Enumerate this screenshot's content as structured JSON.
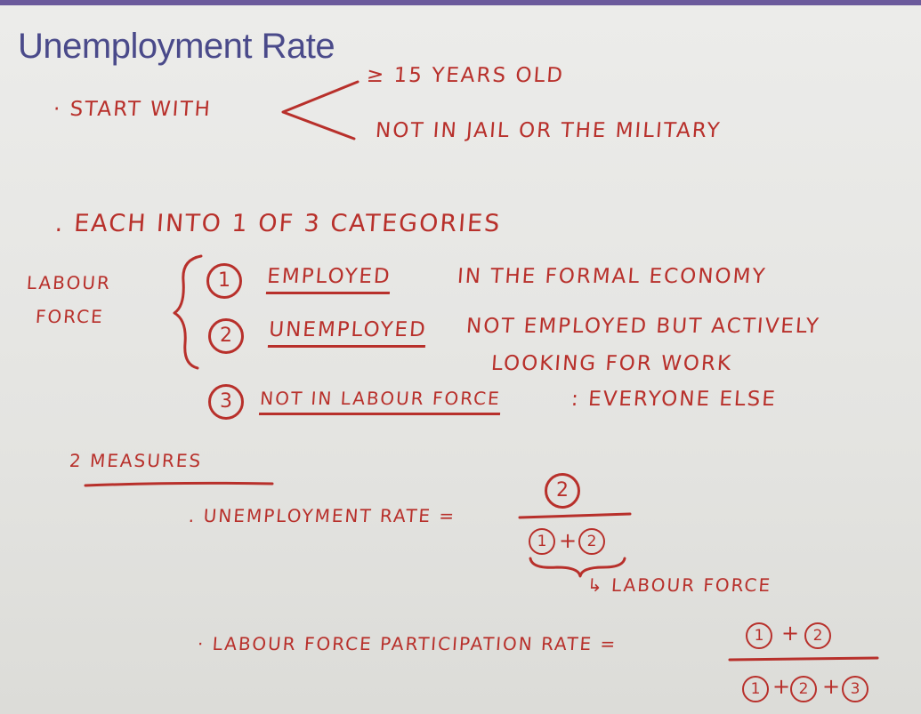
{
  "slide": {
    "title": "Unemployment Rate",
    "start_with": {
      "label": "· START WITH",
      "criteria": [
        "≥ 15 YEARS OLD",
        "NOT IN JAIL OR THE MILITARY"
      ]
    },
    "categories_intro": ". EACH INTO 1 OF 3 CATEGORIES",
    "labour_force_label": [
      "LABOUR",
      "FORCE"
    ],
    "categories": [
      {
        "number": "1",
        "name": "EMPLOYED",
        "desc": "IN THE FORMAL ECONOMY"
      },
      {
        "number": "2",
        "name": "UNEMPLOYED",
        "desc": "NOT EMPLOYED BUT ACTIVELY",
        "desc2": "LOOKING FOR WORK"
      },
      {
        "number": "3",
        "name": "NOT IN LABOUR FORCE",
        "desc": ": EVERYONE ELSE"
      }
    ],
    "measures_heading": "2 MEASURES",
    "unemployment_rate": {
      "label": ". UNEMPLOYMENT RATE =",
      "numerator": [
        "2"
      ],
      "denominator": [
        "1",
        "+",
        "2"
      ],
      "note": "↳ LABOUR FORCE"
    },
    "participation_rate": {
      "label": "· LABOUR FORCE PARTICIPATION RATE =",
      "numerator": [
        "1",
        "+",
        "2"
      ],
      "denominator": [
        "1",
        "+",
        "2",
        "+",
        "3"
      ]
    },
    "colors": {
      "ink": "#b8302b",
      "title": "#4a4a8a",
      "accent_bar": "#6b5a9c",
      "board": "#e6e6e3"
    }
  }
}
